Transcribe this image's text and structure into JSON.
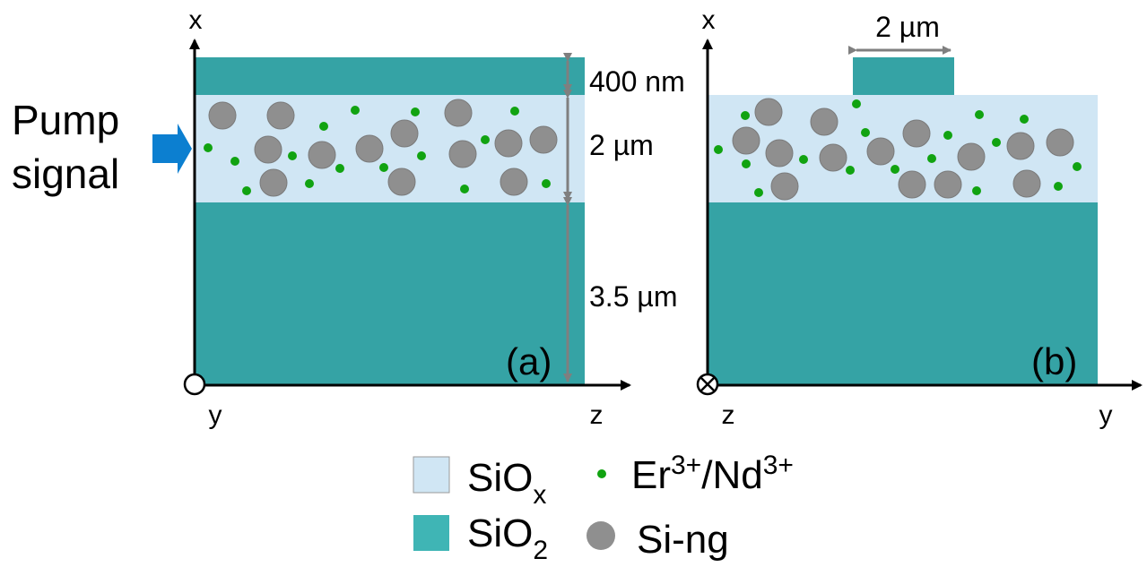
{
  "colors": {
    "siox": "#d0e6f4",
    "sio2": "#35a3a5",
    "sio2_legend": "#3fb5b5",
    "ion": "#11a311",
    "ng": "#8f8f8f",
    "dim_arrow": "#7f7f7f",
    "pump_arrow": "#0c7fd0"
  },
  "pump": {
    "line1": "Pump",
    "line2": "signal"
  },
  "panel_a": {
    "label": "(a)",
    "axis_vertical": "x",
    "axis_horizontal": "z",
    "out_of_plane": "y",
    "dim_top": "400 nm",
    "dim_mid": "2 µm",
    "dim_bottom": "3.5 µm"
  },
  "panel_b": {
    "label": "(b)",
    "axis_vertical": "x",
    "axis_horizontal": "y",
    "out_of_plane": "z",
    "dim_rib": "2 µm"
  },
  "legend": {
    "siox_base": "SiO",
    "siox_sub": "x",
    "sio2_base": "SiO",
    "sio2_sub": "2",
    "ion_a": "Er",
    "ion_a_sup": "3+",
    "ion_sep": "/Nd",
    "ion_b_sup": "3+",
    "ng": "Si-ng"
  }
}
